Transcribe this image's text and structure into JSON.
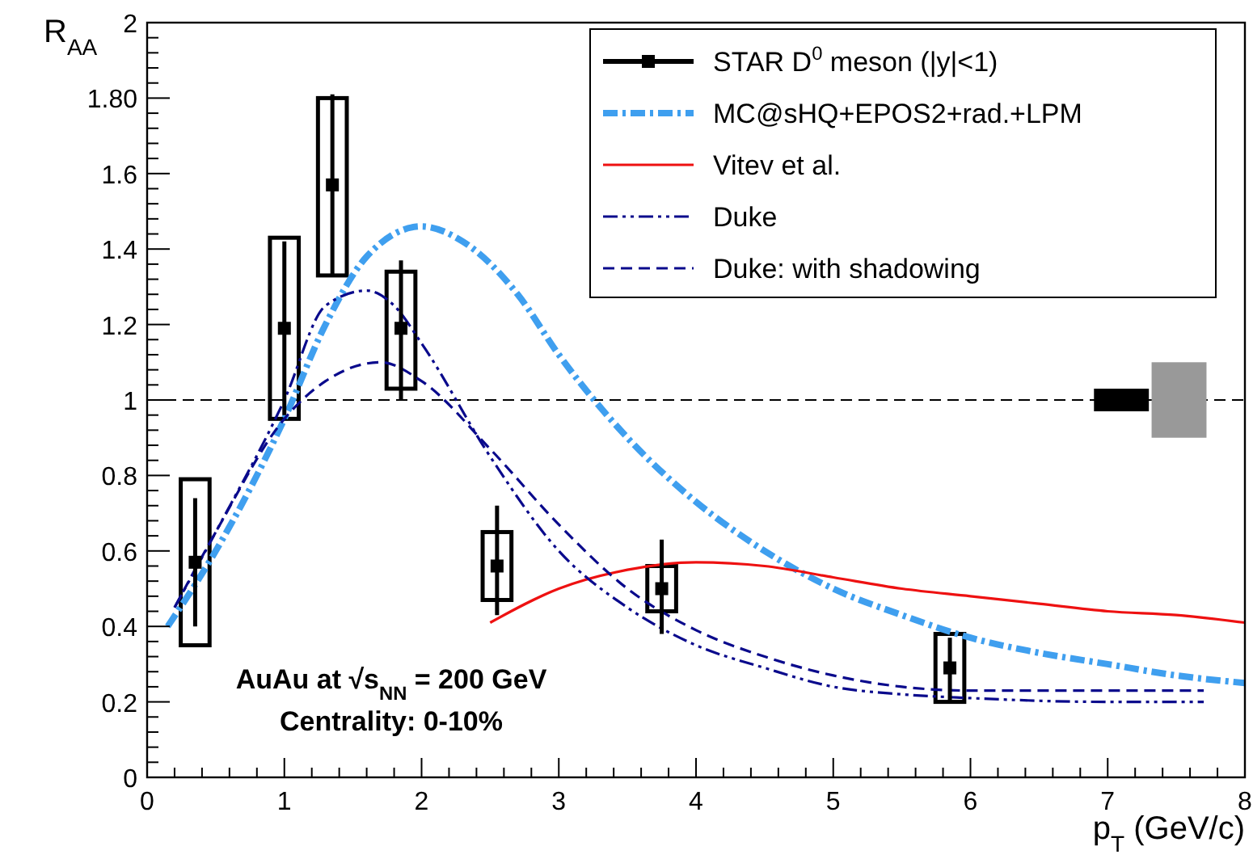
{
  "chart_data": {
    "type": "scatter",
    "xlabel": "p$_{T}$ (GeV/c)",
    "ylabel": "R$_{AA}$",
    "xlim": [
      0,
      8
    ],
    "ylim": [
      0,
      2
    ],
    "xticks": [
      0,
      1,
      2,
      3,
      4,
      5,
      6,
      7,
      8
    ],
    "yticks": [
      0,
      0.2,
      0.4,
      0.6,
      0.8,
      1,
      1.2,
      1.4,
      1.6,
      {
        "value": 1.8,
        "label": "1.80"
      },
      2
    ],
    "grid": false,
    "legend": "top right",
    "ref_lines": [
      {
        "axis": "y",
        "value": 1,
        "line_style": "dashed",
        "color": "#000000"
      }
    ],
    "annotations": [
      "AuAu at √s$_{NN}$ = 200 GeV",
      "Centrality: 0-10%"
    ],
    "series": [
      {
        "name": "STAR D$^{0}$ meson (|y|<1)",
        "marker": "square",
        "color": "#000000",
        "x": [
          0.35,
          1.0,
          1.35,
          1.85,
          2.55,
          3.75,
          5.85
        ],
        "values": [
          0.57,
          1.19,
          1.57,
          1.19,
          0.56,
          0.5,
          0.29
        ],
        "errors": [
          [
            0.4,
            0.74
          ],
          [
            0.96,
            1.42
          ],
          [
            1.33,
            1.81
          ],
          [
            1.0,
            1.37
          ],
          [
            0.43,
            0.72
          ],
          [
            0.38,
            0.63
          ],
          [
            0.2,
            0.37
          ]
        ]
      },
      {
        "type": "bar",
        "color": "#000000",
        "x": [
          0.35,
          1.0,
          1.35,
          1.85,
          2.55,
          3.75,
          5.85
        ],
        "base": [
          0.35,
          0.95,
          1.33,
          1.03,
          0.47,
          0.44,
          0.2
        ],
        "values": [
          0.44,
          0.48,
          0.47,
          0.31,
          0.18,
          0.12,
          0.18
        ]
      },
      {
        "type": "bar",
        "x": [
          7.1,
          7.52
        ],
        "base": [
          0.97,
          0.9
        ],
        "values": [
          0.06,
          0.2
        ],
        "colors": [
          "#000000",
          "#999999"
        ]
      },
      {
        "name": "MC@sHQ+EPOS2+rad.+LPM",
        "type": "line",
        "line_style": "dashdot",
        "color": "#3f9fef",
        "x": [
          0.15,
          0.5,
          1.0,
          1.3,
          1.6,
          2.0,
          2.3,
          2.7,
          3.0,
          3.5,
          4.0,
          4.5,
          5.0,
          5.5,
          6.0,
          6.5,
          7.0,
          7.5,
          8.0
        ],
        "values": [
          0.4,
          0.6,
          0.95,
          1.2,
          1.38,
          1.46,
          1.42,
          1.28,
          1.12,
          0.9,
          0.73,
          0.6,
          0.5,
          0.43,
          0.37,
          0.33,
          0.3,
          0.27,
          0.25
        ]
      },
      {
        "name": "Vitev et al.",
        "type": "line",
        "line_style": "solid",
        "color": "#ee1111",
        "x": [
          2.5,
          3.0,
          3.5,
          4.0,
          4.5,
          5.0,
          5.5,
          6.0,
          6.5,
          7.0,
          7.5,
          8.0
        ],
        "values": [
          0.41,
          0.5,
          0.55,
          0.57,
          0.56,
          0.53,
          0.5,
          0.48,
          0.46,
          0.44,
          0.43,
          0.41
        ]
      },
      {
        "name": "Duke",
        "type": "line",
        "line_style": "dashdotdot",
        "color": "#0a0a8c",
        "x": [
          0.2,
          0.5,
          1.0,
          1.3,
          1.6,
          1.8,
          2.0,
          2.5,
          3.0,
          3.5,
          4.0,
          4.5,
          5.0,
          5.5,
          6.0,
          7.0,
          7.7
        ],
        "values": [
          0.45,
          0.65,
          1.0,
          1.25,
          1.29,
          1.25,
          1.15,
          0.85,
          0.6,
          0.45,
          0.35,
          0.29,
          0.24,
          0.22,
          0.21,
          0.2,
          0.2
        ]
      },
      {
        "name": "Duke: with shadowing",
        "type": "line",
        "line_style": "dashed",
        "color": "#0a0a8c",
        "x": [
          0.2,
          0.5,
          1.0,
          1.3,
          1.7,
          2.0,
          2.5,
          3.0,
          3.5,
          4.0,
          4.5,
          5.0,
          5.5,
          6.0,
          7.0,
          7.7
        ],
        "values": [
          0.45,
          0.65,
          0.95,
          1.05,
          1.1,
          1.05,
          0.87,
          0.67,
          0.5,
          0.39,
          0.32,
          0.27,
          0.24,
          0.23,
          0.23,
          0.23
        ]
      }
    ]
  }
}
